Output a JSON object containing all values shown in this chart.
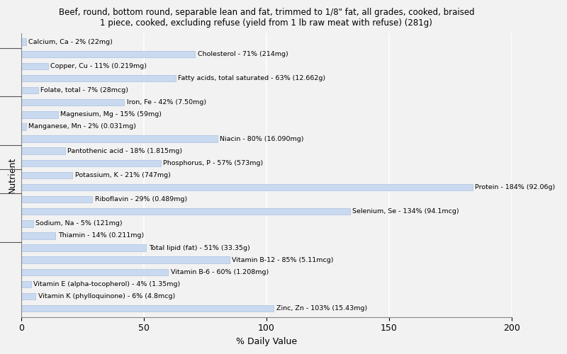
{
  "title": "Beef, round, bottom round, separable lean and fat, trimmed to 1/8\" fat, all grades, cooked, braised\n1 piece, cooked, excluding refuse (yield from 1 lb raw meat with refuse) (281g)",
  "xlabel": "% Daily Value",
  "ylabel": "Nutrient",
  "xlim": [
    0,
    200
  ],
  "xticks": [
    0,
    50,
    100,
    150,
    200
  ],
  "background_color": "#f2f2f2",
  "bar_color": "#c9d9f0",
  "bar_edge_color": "#aac0de",
  "nutrients": [
    {
      "label": "Calcium, Ca - 2% (22mg)",
      "value": 2
    },
    {
      "label": "Cholesterol - 71% (214mg)",
      "value": 71
    },
    {
      "label": "Copper, Cu - 11% (0.219mg)",
      "value": 11
    },
    {
      "label": "Fatty acids, total saturated - 63% (12.662g)",
      "value": 63
    },
    {
      "label": "Folate, total - 7% (28mcg)",
      "value": 7
    },
    {
      "label": "Iron, Fe - 42% (7.50mg)",
      "value": 42
    },
    {
      "label": "Magnesium, Mg - 15% (59mg)",
      "value": 15
    },
    {
      "label": "Manganese, Mn - 2% (0.031mg)",
      "value": 2
    },
    {
      "label": "Niacin - 80% (16.090mg)",
      "value": 80
    },
    {
      "label": "Pantothenic acid - 18% (1.815mg)",
      "value": 18
    },
    {
      "label": "Phosphorus, P - 57% (573mg)",
      "value": 57
    },
    {
      "label": "Potassium, K - 21% (747mg)",
      "value": 21
    },
    {
      "label": "Protein - 184% (92.06g)",
      "value": 184
    },
    {
      "label": "Riboflavin - 29% (0.489mg)",
      "value": 29
    },
    {
      "label": "Selenium, Se - 134% (94.1mcg)",
      "value": 134
    },
    {
      "label": "Sodium, Na - 5% (121mg)",
      "value": 5
    },
    {
      "label": "Thiamin - 14% (0.211mg)",
      "value": 14
    },
    {
      "label": "Total lipid (fat) - 51% (33.35g)",
      "value": 51
    },
    {
      "label": "Vitamin B-12 - 85% (5.11mcg)",
      "value": 85
    },
    {
      "label": "Vitamin B-6 - 60% (1.208mg)",
      "value": 60
    },
    {
      "label": "Vitamin E (alpha-tocopherol) - 4% (1.35mg)",
      "value": 4
    },
    {
      "label": "Vitamin K (phylloquinone) - 6% (4.8mcg)",
      "value": 6
    },
    {
      "label": "Zinc, Zn - 103% (15.43mg)",
      "value": 103
    }
  ],
  "group_tick_positions": [
    1.5,
    5.5,
    9.5,
    13.5,
    17.5,
    21.5
  ]
}
